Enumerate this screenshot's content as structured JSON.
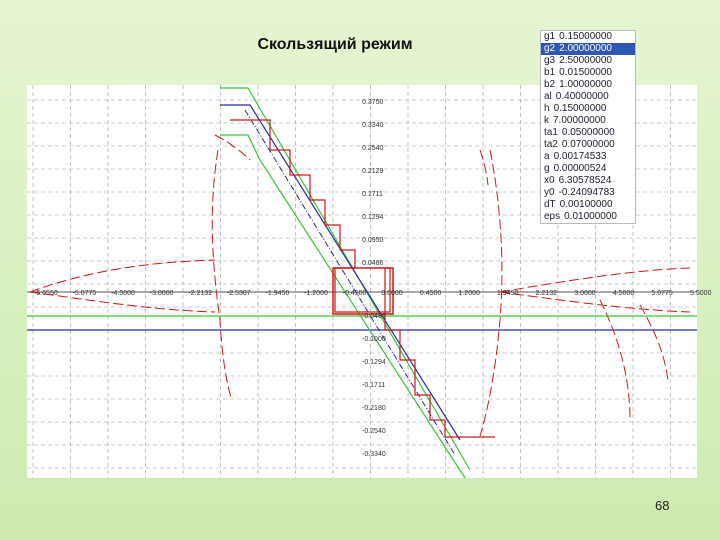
{
  "title": "Скользящий режим",
  "parameters": [
    {
      "name": "g1",
      "value": "0.15000000"
    },
    {
      "name": "g2",
      "value": "2.00000000"
    },
    {
      "name": "g3",
      "value": "2.50000000"
    },
    {
      "name": "b1",
      "value": "0.01500000"
    },
    {
      "name": "b2",
      "value": "1.00000000"
    },
    {
      "name": "al",
      "value": "0.40000000"
    },
    {
      "name": "h",
      "value": "0.15000000"
    },
    {
      "name": "k",
      "value": "7.00000000"
    },
    {
      "name": "ta1",
      "value": "0.05000000"
    },
    {
      "name": "ta2",
      "value": "0.07000000"
    },
    {
      "name": "a",
      "value": "0.00174533"
    },
    {
      "name": "g",
      "value": "0.00000524"
    },
    {
      "name": "x0",
      "value": "6.30578524"
    },
    {
      "name": "y0",
      "value": "-0.24094783"
    },
    {
      "name": "dT",
      "value": "0.00100000"
    },
    {
      "name": "eps",
      "value": "0.01000000"
    }
  ],
  "selected_parameter": 1,
  "x_tick_labels": [
    "-5.6550",
    "-5.0775",
    "-4.5000",
    "-3.0000",
    "-2.2132",
    "-2.5307",
    "-1.9450",
    "-1.2000",
    "-0.4500",
    "0.0000",
    "0.4500",
    "1.2000",
    "1.9450",
    "2.2132",
    "3.0000",
    "4.5000",
    "5.0775",
    "5.5000"
  ],
  "y_tick_labels": [
    "0.3750",
    "0.3340",
    "0.2540",
    "0.2129",
    "0.1711",
    "0.1294",
    "0.0950",
    "0.0486",
    "-0.0486",
    "-0.1000",
    "-0.1294",
    "-0.1711",
    "-0.2180",
    "-0.2540",
    "-0.3340"
  ],
  "page_number": "68"
}
